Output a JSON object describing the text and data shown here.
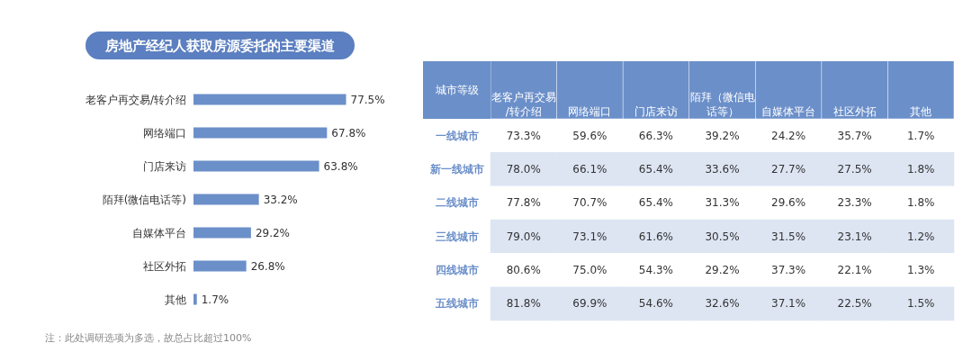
{
  "chart_data": [
    {
      "type": "bar",
      "orientation": "horizontal",
      "title": "房地产经纪人获取房源委托的主要渠道",
      "categories": [
        "老客户再交易/转介绍",
        "网络端口",
        "门店来访",
        "陌拜(微信电话等)",
        "自媒体平台",
        "社区外拓",
        "其他"
      ],
      "values": [
        77.5,
        67.8,
        63.8,
        33.2,
        29.2,
        26.8,
        1.7
      ],
      "value_labels": [
        "77.5%",
        "67.8%",
        "63.8%",
        "33.2%",
        "29.2%",
        "26.8%",
        "1.7%"
      ],
      "color": "#6b8fc9",
      "tick_labels": "y",
      "annotations": [
        "注：此处调研选项为多选，故总占比超过100%"
      ]
    },
    {
      "type": "heatmap",
      "ylabel": "城市等级",
      "categories": [
        "老客户再交易/转介绍",
        "网络端口",
        "门店来访",
        "陌拜（微信电话等）",
        "自媒体平台",
        "社区外拓",
        "其他"
      ],
      "y_categories": [
        "一线城市",
        "新一线城市",
        "二线城市",
        "三线城市",
        "四线城市",
        "五线城市"
      ],
      "cells": [
        [
          73.3,
          59.6,
          66.3,
          39.2,
          24.2,
          35.7,
          1.7
        ],
        [
          78.0,
          66.1,
          65.4,
          33.6,
          27.7,
          27.5,
          1.8
        ],
        [
          77.8,
          70.7,
          65.4,
          31.3,
          29.6,
          23.3,
          1.8
        ],
        [
          79.0,
          73.1,
          61.6,
          30.5,
          31.5,
          23.1,
          1.2
        ],
        [
          80.6,
          75.0,
          54.3,
          29.2,
          37.3,
          22.1,
          1.3
        ],
        [
          81.8,
          69.9,
          54.6,
          32.6,
          37.1,
          22.5,
          1.5
        ]
      ],
      "cell_labels": [
        [
          "73.3%",
          "59.6%",
          "66.3%",
          "39.2%",
          "24.2%",
          "35.7%",
          "1.7%"
        ],
        [
          "78.0%",
          "66.1%",
          "65.4%",
          "33.6%",
          "27.7%",
          "27.5%",
          "1.8%"
        ],
        [
          "77.8%",
          "70.7%",
          "65.4%",
          "31.3%",
          "29.6%",
          "23.3%",
          "1.8%"
        ],
        [
          "79.0%",
          "73.1%",
          "61.6%",
          "30.5%",
          "31.5%",
          "23.1%",
          "1.2%"
        ],
        [
          "80.6%",
          "75.0%",
          "54.3%",
          "29.2%",
          "37.3%",
          "22.1%",
          "1.3%"
        ],
        [
          "81.8%",
          "69.9%",
          "54.6%",
          "32.6%",
          "37.1%",
          "22.5%",
          "1.5%"
        ]
      ]
    }
  ]
}
